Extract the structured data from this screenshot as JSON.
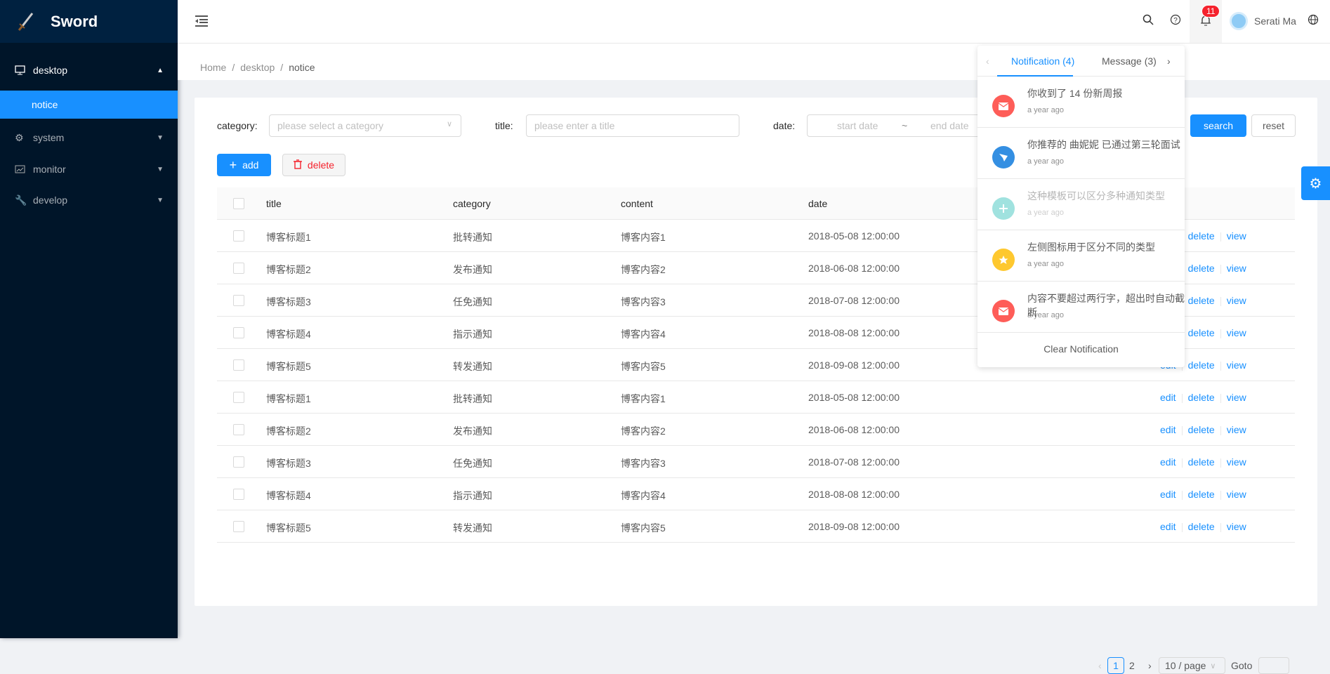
{
  "app": {
    "name": "Sword"
  },
  "sidebar": {
    "items": [
      {
        "label": "desktop",
        "icon": "desktop-icon",
        "expanded": true
      },
      {
        "label": "notice",
        "active": true
      },
      {
        "label": "system",
        "icon": "setting-icon"
      },
      {
        "label": "monitor",
        "icon": "line-chart-icon"
      },
      {
        "label": "develop",
        "icon": "tool-icon"
      }
    ]
  },
  "header": {
    "user": "Serati Ma",
    "badge": "11"
  },
  "breadcrumb": [
    "Home",
    "desktop",
    "notice"
  ],
  "filters": {
    "category_label": "category:",
    "category_placeholder": "please select a category",
    "title_label": "title:",
    "title_placeholder": "please enter a title",
    "date_label": "date:",
    "start_placeholder": "start date",
    "range_sep": "~",
    "end_placeholder": "end date",
    "search": "search",
    "reset": "reset"
  },
  "toolbar": {
    "add": "add",
    "delete": "delete"
  },
  "table": {
    "columns": [
      "title",
      "category",
      "content",
      "date"
    ],
    "rows": [
      [
        "博客标题1",
        "批转通知",
        "博客内容1",
        "2018-05-08 12:00:00"
      ],
      [
        "博客标题2",
        "发布通知",
        "博客内容2",
        "2018-06-08 12:00:00"
      ],
      [
        "博客标题3",
        "任免通知",
        "博客内容3",
        "2018-07-08 12:00:00"
      ],
      [
        "博客标题4",
        "指示通知",
        "博客内容4",
        "2018-08-08 12:00:00"
      ],
      [
        "博客标题5",
        "转发通知",
        "博客内容5",
        "2018-09-08 12:00:00"
      ],
      [
        "博客标题1",
        "批转通知",
        "博客内容1",
        "2018-05-08 12:00:00"
      ],
      [
        "博客标题2",
        "发布通知",
        "博客内容2",
        "2018-06-08 12:00:00"
      ],
      [
        "博客标题3",
        "任免通知",
        "博客内容3",
        "2018-07-08 12:00:00"
      ],
      [
        "博客标题4",
        "指示通知",
        "博客内容4",
        "2018-08-08 12:00:00"
      ],
      [
        "博客标题5",
        "转发通知",
        "博客内容5",
        "2018-09-08 12:00:00"
      ]
    ],
    "actions": [
      "edit",
      "delete",
      "view"
    ]
  },
  "pagination": {
    "pages": [
      "1",
      "2"
    ],
    "current": "1",
    "page_size": "10 / page",
    "goto": "Goto"
  },
  "notifications": {
    "tabs": [
      "Notification (4)",
      "Message (3)"
    ],
    "items": [
      {
        "title": "你收到了 14 份新周报",
        "time": "a year ago",
        "color": "#fe5d58",
        "icon": "mail-icon"
      },
      {
        "title": "你推荐的 曲妮妮 已通过第三轮面试",
        "time": "a year ago",
        "color": "#348fe2",
        "icon": "send-icon"
      },
      {
        "title": "这种模板可以区分多种通知类型",
        "time": "a year ago",
        "color": "#a0e2df",
        "icon": "plus-icon",
        "read": true
      },
      {
        "title": "左侧图标用于区分不同的类型",
        "time": "a year ago",
        "color": "#fec82f",
        "icon": "star-icon"
      },
      {
        "title": "内容不要超过两行字，超出时自动截断",
        "time": "a year ago",
        "color": "#fe5d58",
        "icon": "mail-icon"
      }
    ],
    "clear": "Clear Notification"
  },
  "colors": {
    "primary": "#1890ff",
    "sidebar": "#001529",
    "danger": "#f5222d"
  }
}
